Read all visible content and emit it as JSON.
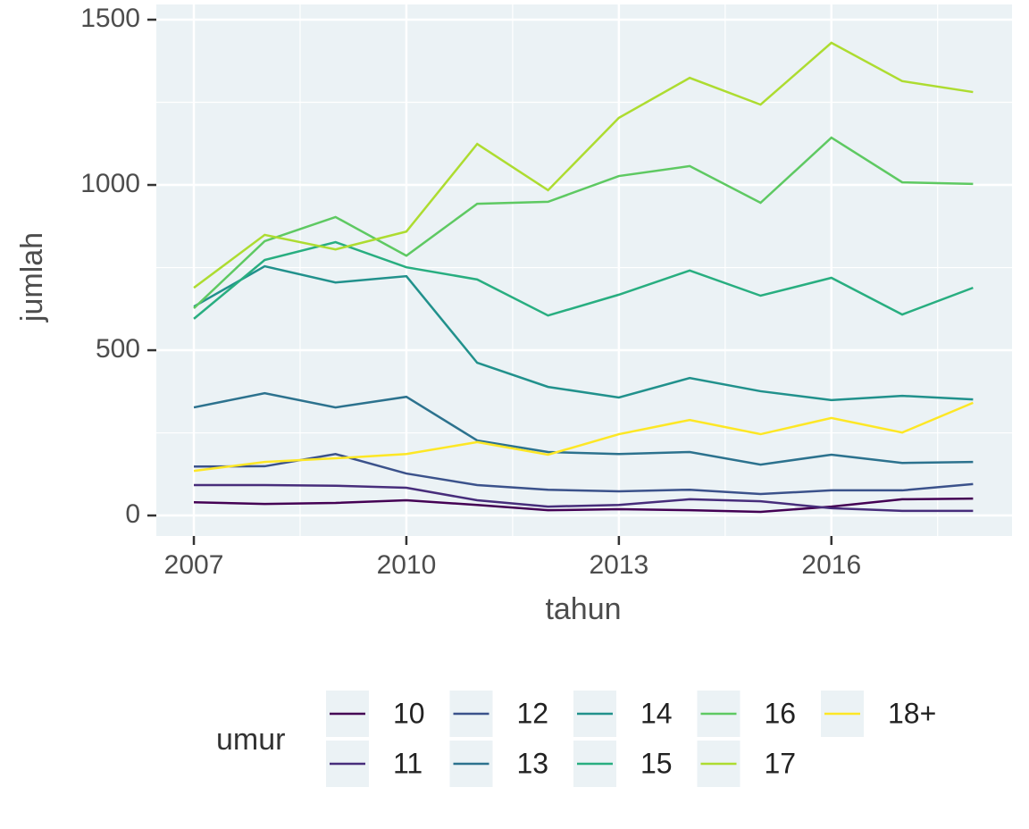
{
  "chart_data": {
    "type": "line",
    "x": [
      2007,
      2008,
      2009,
      2010,
      2011,
      2012,
      2013,
      2014,
      2015,
      2016,
      2017,
      2018
    ],
    "x_label": "tahun",
    "y_label": "jumlah",
    "legend_title": "umur",
    "xlim": [
      2006.47,
      2018.55
    ],
    "xticks": [
      2007,
      2010,
      2013,
      2016
    ],
    "ylim": [
      -62,
      1546
    ],
    "yticks": [
      0,
      500,
      1000,
      1500
    ],
    "grid": true,
    "legend": "bottom",
    "series": [
      {
        "name": "10",
        "color": "#440154",
        "values": [
          40,
          35,
          38,
          46,
          32,
          16,
          19,
          16,
          11,
          27,
          49,
          51
        ]
      },
      {
        "name": "11",
        "color": "#472d7b",
        "values": [
          92,
          92,
          90,
          84,
          46,
          27,
          32,
          49,
          43,
          22,
          14,
          14
        ]
      },
      {
        "name": "12",
        "color": "#3b528b",
        "values": [
          148,
          149,
          186,
          127,
          92,
          78,
          73,
          78,
          65,
          76,
          76,
          95
        ]
      },
      {
        "name": "13",
        "color": "#2c728e",
        "values": [
          327,
          370,
          327,
          359,
          227,
          192,
          186,
          192,
          154,
          184,
          159,
          162
        ]
      },
      {
        "name": "14",
        "color": "#21918c",
        "values": [
          632,
          754,
          705,
          724,
          462,
          389,
          357,
          416,
          376,
          349,
          362,
          351
        ]
      },
      {
        "name": "15",
        "color": "#28ae80",
        "values": [
          595,
          773,
          827,
          751,
          714,
          605,
          668,
          741,
          665,
          719,
          608,
          689
        ]
      },
      {
        "name": "16",
        "color": "#5ec962",
        "values": [
          627,
          830,
          903,
          786,
          943,
          949,
          1027,
          1057,
          946,
          1143,
          1008,
          1003
        ]
      },
      {
        "name": "17",
        "color": "#addc30",
        "values": [
          689,
          849,
          805,
          859,
          1124,
          984,
          1203,
          1324,
          1243,
          1430,
          1314,
          1281
        ]
      },
      {
        "name": "18+",
        "color": "#fde725",
        "values": [
          135,
          162,
          173,
          186,
          222,
          184,
          246,
          289,
          246,
          295,
          251,
          341
        ]
      }
    ]
  }
}
